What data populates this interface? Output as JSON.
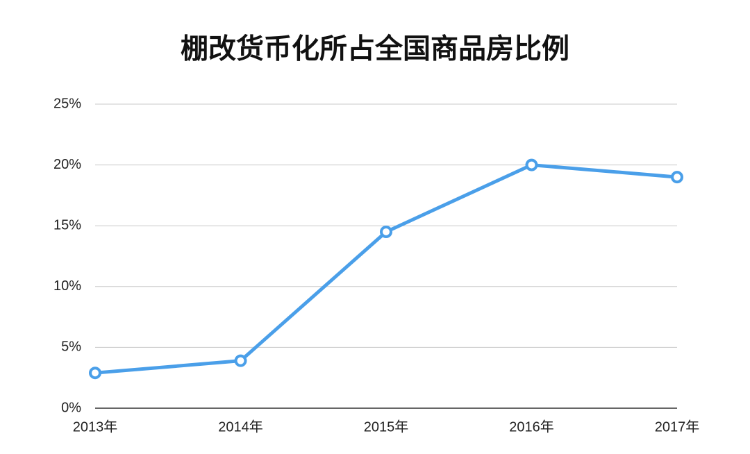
{
  "chart_data": {
    "type": "line",
    "title": "棚改货币化所占全国商品房比例",
    "categories": [
      "2013年",
      "2014年",
      "2015年",
      "2016年",
      "2017年"
    ],
    "values": [
      2.9,
      3.9,
      14.5,
      20,
      19
    ],
    "color": "#4a9fe9",
    "ylim": [
      0,
      25
    ],
    "yticks": [
      {
        "value": 0,
        "label": "0%"
      },
      {
        "value": 5,
        "label": "5%"
      },
      {
        "value": 10,
        "label": "10%"
      },
      {
        "value": 15,
        "label": "15%"
      },
      {
        "value": 20,
        "label": "20%"
      },
      {
        "value": 25,
        "label": "25%"
      }
    ],
    "grid": true
  }
}
